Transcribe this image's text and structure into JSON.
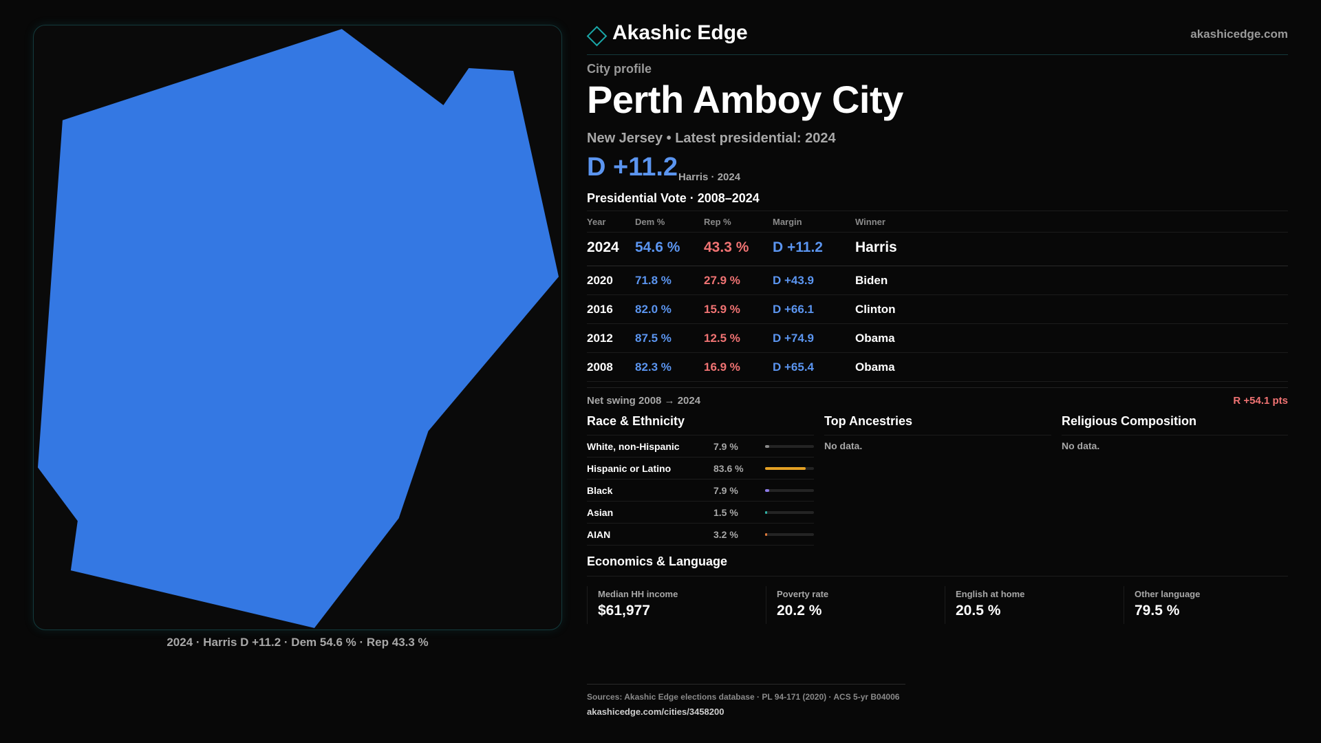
{
  "brand": {
    "name": "Akashic Edge",
    "url": "akashicedge.com"
  },
  "profile": {
    "kicker": "City profile",
    "title": "Perth Amboy City",
    "subtitle": "New Jersey • Latest presidential: 2024",
    "margin": "D +11.2",
    "margin_note": "Harris · 2024"
  },
  "map": {
    "caption": "2024 · Harris D +11.2 · Dem 54.6 % · Rep 43.3 %",
    "fill_color": "#3478e3"
  },
  "vote_table": {
    "title": "Presidential Vote · 2008–2024",
    "columns": [
      "Year",
      "Dem %",
      "Rep %",
      "Margin",
      "Winner"
    ],
    "rows": [
      {
        "year": "2024",
        "dem": "54.6 %",
        "rep": "43.3 %",
        "margin": "D +11.2",
        "winner": "Harris"
      },
      {
        "year": "2020",
        "dem": "71.8 %",
        "rep": "27.9 %",
        "margin": "D +43.9",
        "winner": "Biden"
      },
      {
        "year": "2016",
        "dem": "82.0 %",
        "rep": "15.9 %",
        "margin": "D +66.1",
        "winner": "Clinton"
      },
      {
        "year": "2012",
        "dem": "87.5 %",
        "rep": "12.5 %",
        "margin": "D +74.9",
        "winner": "Obama"
      },
      {
        "year": "2008",
        "dem": "82.3 %",
        "rep": "16.9 %",
        "margin": "D +65.4",
        "winner": "Obama"
      }
    ],
    "swing_label": "Net swing 2008 → 2024",
    "swing_value": "R +54.1 pts"
  },
  "race": {
    "title": "Race & Ethnicity",
    "rows": [
      {
        "name": "White, non-Hispanic",
        "pct": "7.9 %",
        "value": 7.9,
        "color": "#8a8a8a"
      },
      {
        "name": "Hispanic or Latino",
        "pct": "83.6 %",
        "value": 83.6,
        "color": "#e3a024"
      },
      {
        "name": "Black",
        "pct": "7.9 %",
        "value": 7.9,
        "color": "#8c7ae6"
      },
      {
        "name": "Asian",
        "pct": "1.5 %",
        "value": 1.5,
        "color": "#2fb3a6"
      },
      {
        "name": "AIAN",
        "pct": "3.2 %",
        "value": 3.2,
        "color": "#e07a3a"
      }
    ]
  },
  "ancestries": {
    "title": "Top Ancestries",
    "empty": "No data."
  },
  "religion": {
    "title": "Religious Composition",
    "empty": "No data."
  },
  "economics": {
    "title": "Economics & Language",
    "stats": [
      {
        "label": "Median HH income",
        "value": "$61,977"
      },
      {
        "label": "Poverty rate",
        "value": "20.2 %"
      },
      {
        "label": "English at home",
        "value": "20.5 %"
      },
      {
        "label": "Other language",
        "value": "79.5 %"
      }
    ]
  },
  "footer": {
    "sources": "Sources: Akashic Edge elections database · PL 94-171 (2020) · ACS 5-yr B04006",
    "url": "akashicedge.com/cities/3458200"
  }
}
